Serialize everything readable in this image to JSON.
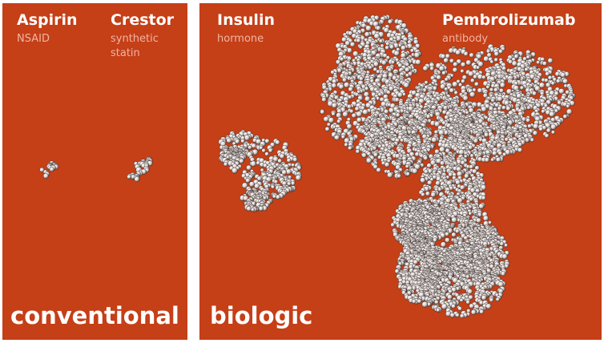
{
  "panels": {
    "conventional": {
      "category": "conventional",
      "drugs": [
        {
          "name": "Aspirin",
          "type": "NSAID"
        },
        {
          "name": "Crestor",
          "type_lines": [
            "synthetic",
            "statin"
          ]
        }
      ]
    },
    "biologic": {
      "category": "biologic",
      "drugs": [
        {
          "name": "Insulin",
          "type": "hormone"
        },
        {
          "name": "Pembrolizumab",
          "type": "antibody"
        }
      ]
    }
  },
  "colors": {
    "background": "#c53f17",
    "drug_name": "#ffffff",
    "drug_type": "#f0b5a2",
    "molecule_fill": "#e9e1df",
    "molecule_shade": "#3b3331"
  }
}
